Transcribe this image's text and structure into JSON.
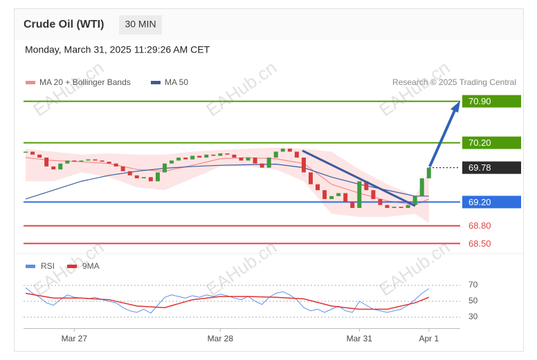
{
  "chart_data": {
    "type": "candlestick",
    "title": "Crude Oil (WTI)",
    "interval": "30 MIN",
    "timestamp": "Monday, March 31, 2025 11:29:26 AM CET",
    "source": "Research © 2025 Trading Central",
    "watermark": "EAHub.cn",
    "x": [
      0,
      1,
      2,
      3,
      4,
      5,
      6,
      7,
      8,
      9,
      10,
      11,
      12,
      13,
      14,
      15,
      16,
      17,
      18,
      19,
      20,
      21,
      22,
      23,
      24,
      25,
      26,
      27,
      28,
      29,
      30,
      31,
      32,
      33,
      34,
      35,
      36,
      37,
      38,
      39,
      40,
      41,
      42,
      43,
      44,
      45,
      46,
      47,
      48,
      49,
      50,
      51,
      52,
      53,
      54,
      55,
      56,
      57,
      58
    ],
    "close": [
      70.05,
      70.0,
      69.95,
      69.8,
      69.75,
      69.85,
      69.9,
      69.88,
      69.9,
      69.92,
      69.9,
      69.88,
      69.85,
      69.8,
      69.72,
      69.65,
      69.6,
      69.62,
      69.55,
      69.7,
      69.85,
      69.9,
      69.95,
      69.92,
      69.98,
      69.95,
      70.0,
      69.98,
      70.02,
      70.0,
      69.95,
      69.9,
      69.95,
      69.85,
      69.78,
      69.95,
      70.05,
      70.1,
      70.05,
      69.95,
      69.7,
      69.5,
      69.4,
      69.25,
      69.3,
      69.35,
      69.2,
      69.1,
      69.55,
      69.4,
      69.25,
      69.15,
      69.1,
      69.12,
      69.1,
      69.15,
      69.3,
      69.6,
      69.78
    ],
    "color_up": "#3f9b3f",
    "color_down": "#d63b3b",
    "xlim": [
      -0.3,
      62.5
    ],
    "xticks": [
      {
        "value": 7,
        "label": "Mar 27"
      },
      {
        "value": 28,
        "label": "Mar 28"
      },
      {
        "value": 48,
        "label": "Mar 31"
      },
      {
        "value": 58,
        "label": "Apr 1"
      }
    ],
    "ylim": [
      68.4,
      71.0
    ],
    "levels": [
      {
        "value": 70.9,
        "label": "70.90",
        "color": "#4f9a0a",
        "line": "solid",
        "label_box": true
      },
      {
        "value": 70.2,
        "label": "70.20",
        "color": "#4f9a0a",
        "line": "solid",
        "label_box": true
      },
      {
        "value": 69.78,
        "label": "69.78",
        "color": "#2b2b2b",
        "line": "dotted",
        "label_box": true
      },
      {
        "value": 69.2,
        "label": "69.20",
        "color": "#2f6fe0",
        "line": "solid",
        "label_box": true
      },
      {
        "value": 68.8,
        "label": "68.80",
        "color": "#e04545",
        "line": "solid",
        "label_box": false
      },
      {
        "value": 68.5,
        "label": "68.50",
        "color": "#e04545",
        "line": "solid",
        "label_box": false
      }
    ],
    "overlays": {
      "x": [
        0,
        4,
        8,
        12,
        16,
        20,
        24,
        28,
        32,
        36,
        40,
        44,
        48,
        52,
        56,
        58
      ],
      "series": [
        {
          "name": "MA 20 + Bollinger Bands",
          "color": "#f28b8b",
          "values": [
            69.95,
            69.9,
            69.88,
            69.85,
            69.75,
            69.72,
            69.82,
            69.93,
            69.95,
            69.93,
            69.85,
            69.5,
            69.35,
            69.22,
            69.15,
            69.25
          ],
          "upper": [
            70.1,
            70.05,
            70.0,
            70.02,
            70.0,
            70.0,
            70.05,
            70.08,
            70.1,
            70.12,
            70.1,
            70.05,
            69.75,
            69.5,
            69.3,
            69.7
          ],
          "lower": [
            69.55,
            69.55,
            69.7,
            69.62,
            69.45,
            69.4,
            69.6,
            69.8,
            69.8,
            69.75,
            69.55,
            69.0,
            68.95,
            68.95,
            69.0,
            68.85
          ]
        },
        {
          "name": "MA 50",
          "color": "#3d5a9c",
          "values": [
            69.25,
            69.4,
            69.55,
            69.65,
            69.72,
            69.77,
            69.8,
            69.82,
            69.83,
            69.84,
            69.78,
            69.62,
            69.5,
            69.4,
            69.3,
            69.3
          ]
        }
      ]
    },
    "rsi": {
      "ylim": [
        20,
        80
      ],
      "yticks": [
        30,
        50,
        70
      ],
      "series": [
        {
          "name": "RSI",
          "color": "#5b8de8",
          "values": [
            67,
            60,
            55,
            48,
            45,
            52,
            58,
            55,
            54,
            53,
            55,
            52,
            50,
            48,
            42,
            38,
            36,
            40,
            35,
            45,
            55,
            58,
            56,
            54,
            57,
            55,
            58,
            56,
            59,
            57,
            54,
            52,
            56,
            50,
            46,
            55,
            60,
            62,
            58,
            52,
            42,
            38,
            40,
            36,
            40,
            44,
            38,
            36,
            50,
            45,
            40,
            38,
            36,
            38,
            40,
            45,
            52,
            60,
            66
          ]
        },
        {
          "name": "9MA",
          "color": "#e03030",
          "values": [
            60,
            54,
            54,
            52,
            44,
            42,
            52,
            56,
            56,
            55,
            53,
            44,
            40,
            40,
            48,
            55
          ]
        }
      ]
    }
  }
}
